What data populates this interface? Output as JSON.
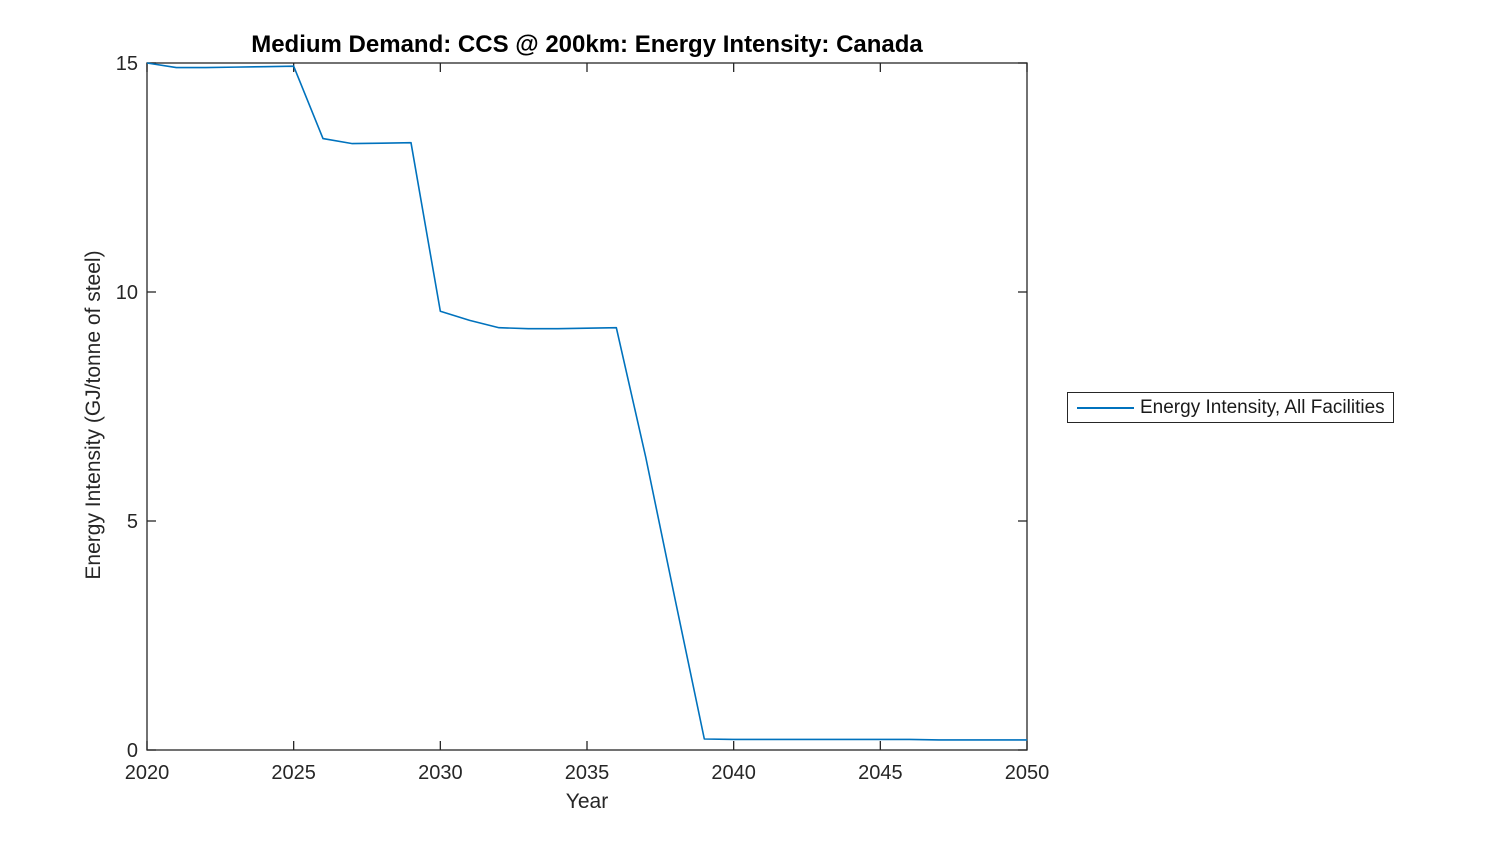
{
  "figure": {
    "title": "Medium Demand: CCS @ 200km: Energy Intensity: Canada",
    "xlabel": "Year",
    "ylabel": "Energy Intensity (GJ/tonne of steel)",
    "legend": {
      "items": [
        {
          "label": "Energy Intensity, All Facilities",
          "color": "#0072BD"
        }
      ],
      "position": "right-outside"
    },
    "colors": {
      "line": "#0072BD",
      "axis": "#262626",
      "background": "#ffffff",
      "title_text": "#000000",
      "tick_text": "#262626"
    }
  },
  "chart_data": {
    "type": "line",
    "title": "Medium Demand: CCS @ 200km: Energy Intensity: Canada",
    "xlabel": "Year",
    "ylabel": "Energy Intensity (GJ/tonne of steel)",
    "xlim": [
      2020,
      2050
    ],
    "ylim": [
      0,
      15
    ],
    "xticks": [
      2020,
      2025,
      2030,
      2035,
      2040,
      2045,
      2050
    ],
    "yticks": [
      0,
      5,
      10,
      15
    ],
    "grid": false,
    "legend_position": "right-outside",
    "series": [
      {
        "name": "Energy Intensity, All Facilities",
        "color": "#0072BD",
        "x": [
          2020,
          2021,
          2022,
          2023,
          2024,
          2025,
          2026,
          2027,
          2028,
          2029,
          2030,
          2031,
          2032,
          2033,
          2034,
          2035,
          2036,
          2037,
          2038,
          2039,
          2040,
          2041,
          2042,
          2043,
          2044,
          2045,
          2046,
          2047,
          2048,
          2049,
          2050
        ],
        "y": [
          15.0,
          14.9,
          14.9,
          14.91,
          14.92,
          14.93,
          13.35,
          13.24,
          13.25,
          13.26,
          9.58,
          9.38,
          9.22,
          9.2,
          9.2,
          9.21,
          9.22,
          6.4,
          3.3,
          0.24,
          0.23,
          0.23,
          0.23,
          0.23,
          0.23,
          0.23,
          0.23,
          0.22,
          0.22,
          0.22,
          0.22
        ]
      }
    ]
  }
}
